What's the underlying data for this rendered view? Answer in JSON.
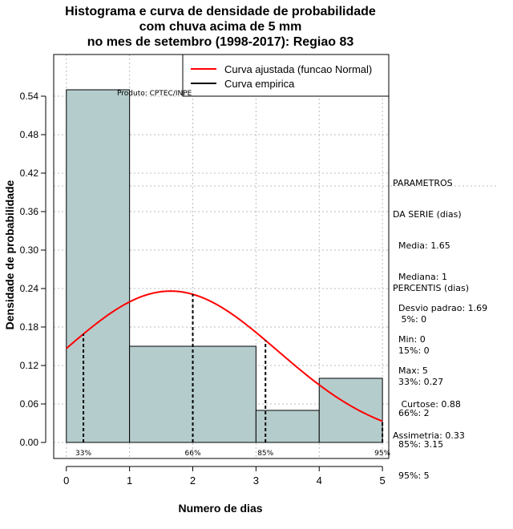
{
  "chart_data": {
    "type": "bar",
    "title_lines": [
      "Histograma e curva de densidade de probabilidade",
      "com chuva acima de 5 mm",
      "no mes de setembro (1998-2017): Regiao 83"
    ],
    "xlabel": "Numero de dias",
    "ylabel": "Densidade de probabilidade",
    "xlim": [
      -0.2,
      5.1
    ],
    "ylim": [
      -0.025,
      0.605
    ],
    "x_ticks": [
      "0",
      "1",
      "2",
      "3",
      "4",
      "5"
    ],
    "y_ticks": [
      "0.00",
      "0.06",
      "0.12",
      "0.18",
      "0.24",
      "0.30",
      "0.36",
      "0.42",
      "0.48",
      "0.54"
    ],
    "bins": [
      {
        "from": 0,
        "to": 1,
        "density": 0.55
      },
      {
        "from": 1,
        "to": 3,
        "density": 0.15
      },
      {
        "from": 3,
        "to": 4,
        "density": 0.05
      },
      {
        "from": 4,
        "to": 5,
        "density": 0.1
      }
    ],
    "normal_fit": {
      "mean": 1.65,
      "sd": 1.69,
      "x_from": 0,
      "x_to": 5
    },
    "percentile_lines": [
      {
        "x": 0.27,
        "label": "33%"
      },
      {
        "x": 2,
        "label": "66%"
      },
      {
        "x": 3.15,
        "label": "85%"
      },
      {
        "x": 5,
        "label": "95%"
      }
    ],
    "grid": true,
    "highlight_gridline_y": 0.4,
    "legend": {
      "placement": "top-right",
      "entries": [
        {
          "label": "Curva ajustada (funcao Normal)",
          "color": "#ff0000"
        },
        {
          "label": "Curva empirica",
          "color": "#000000"
        }
      ]
    },
    "annotation": "Produto: CPTEC/INPE",
    "colors": {
      "bar_fill": "#b5cccc",
      "fit_line": "#ff0000",
      "empirical": "#000000",
      "grid": "#bbbbbb"
    }
  },
  "stats": {
    "parametros_lines": [
      "PARAMETROS",
      "DA SERIE (dias)",
      "  Media: 1.65",
      "  Mediana: 1",
      "  Desvio padrao: 1.69",
      "  Min: 0",
      "  Max: 5"
    ],
    "percentis_lines": [
      "PERCENTIS (dias)",
      "   5%: 0",
      "  15%: 0",
      "  33%: 0.27",
      "  66%: 2",
      "  85%: 3.15",
      "  95%: 5"
    ],
    "shape_lines": [
      "   Curtose: 0.88",
      "Assimetria: 0.33"
    ]
  }
}
